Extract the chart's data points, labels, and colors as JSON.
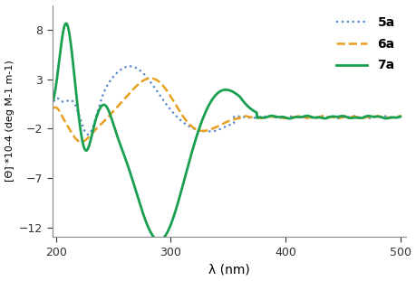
{
  "title": "",
  "xlabel": "λ (nm)",
  "ylabel": "[Θ] *10-4 (deg M-1 m-1)",
  "xlim": [
    197,
    505
  ],
  "ylim": [
    -13,
    10.5
  ],
  "yticks": [
    -12,
    -7,
    -2,
    3,
    8
  ],
  "xticks": [
    200,
    300,
    400,
    500
  ],
  "legend_labels": [
    "5a",
    "6a",
    "7a"
  ],
  "line_5a": {
    "color": "#5588cc",
    "linestyle": "dotted",
    "linewidth": 1.6
  },
  "line_6a": {
    "color": "#e8a020",
    "linestyle": "dashed",
    "linewidth": 1.8
  },
  "line_7a": {
    "color": "#18a050",
    "linestyle": "solid",
    "linewidth": 2.0
  },
  "background_color": "#ffffff",
  "flat_level": -0.85
}
